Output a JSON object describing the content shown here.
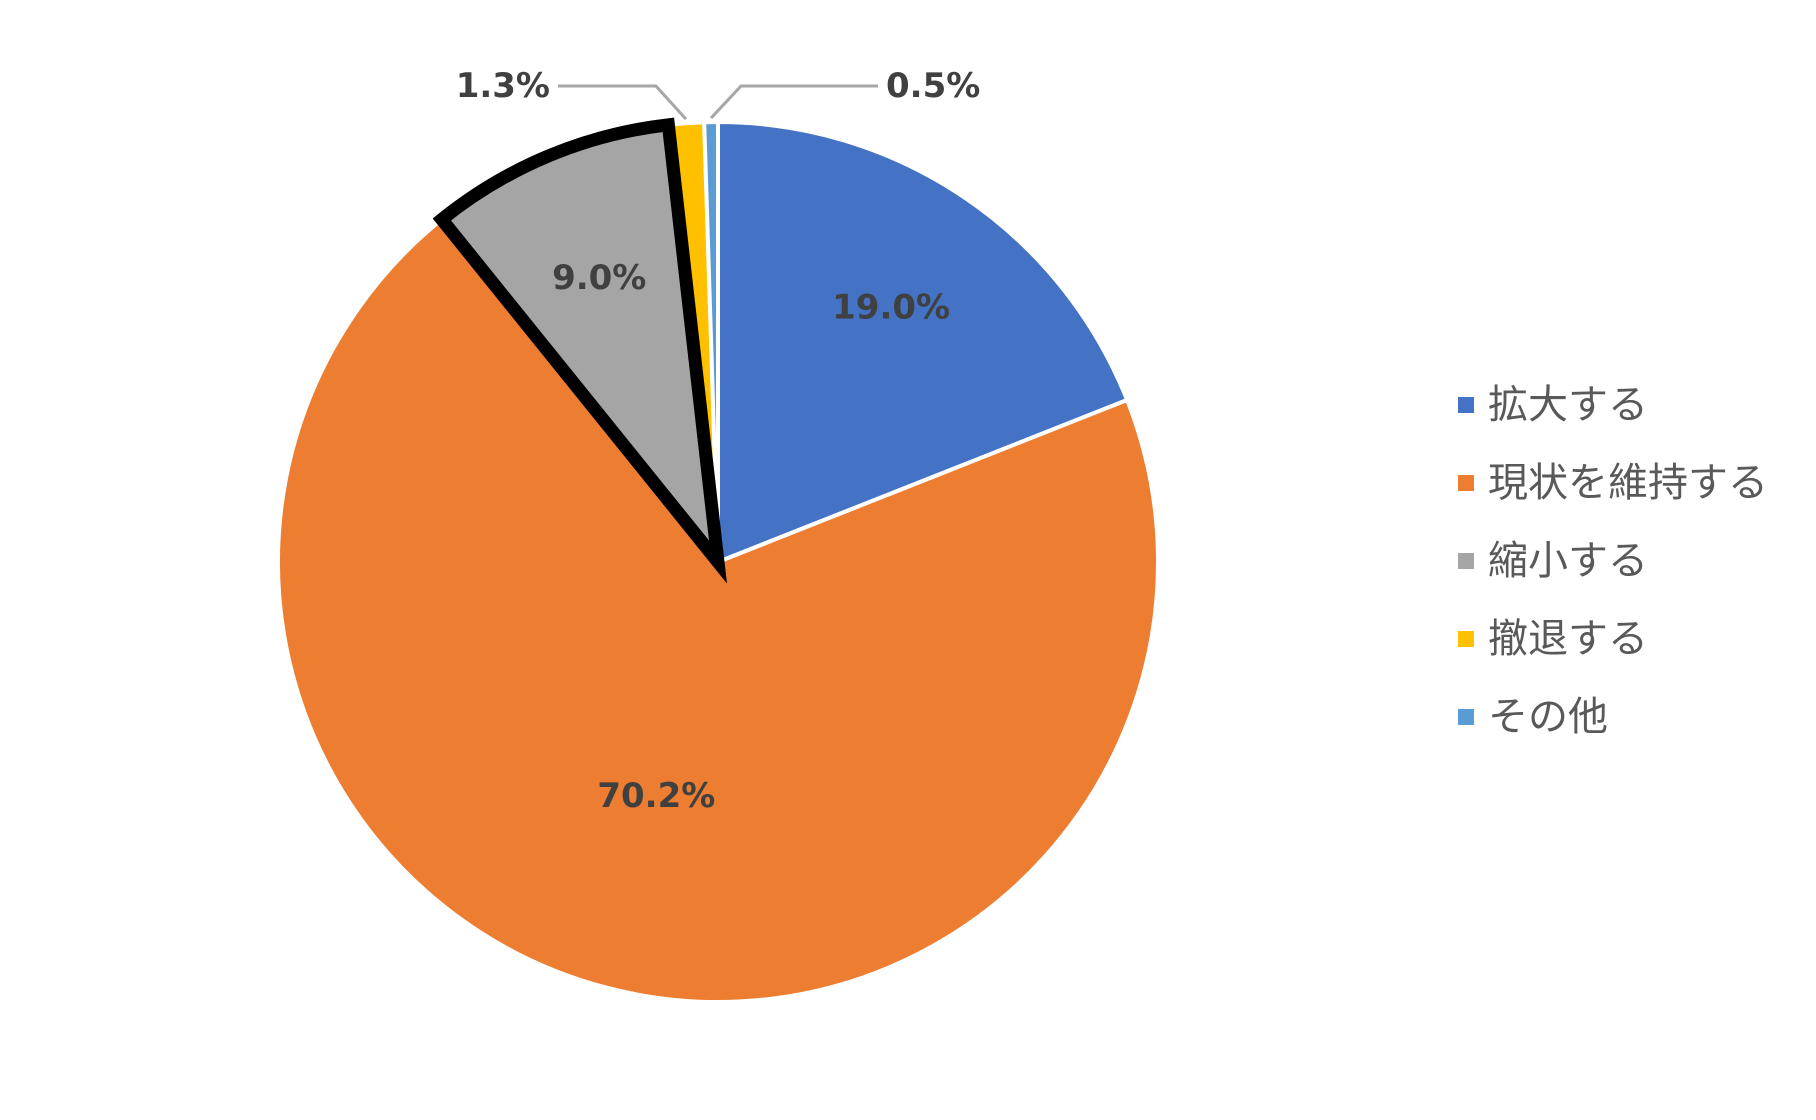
{
  "chart_data": {
    "type": "pie",
    "categories": [
      "拡大する",
      "現状を維持する",
      "縮小する",
      "撤退する",
      "その他"
    ],
    "values": [
      19.0,
      70.2,
      9.0,
      1.3,
      0.5
    ],
    "labels": [
      "19.0%",
      "70.2%",
      "9.0%",
      "1.3%",
      "0.5%"
    ],
    "colors": [
      "#4472C4",
      "#ED7D31",
      "#A5A5A5",
      "#FFC000",
      "#5B9BD5"
    ],
    "highlighted": "縮小する",
    "highlight_color": "#000000",
    "start_angle": "top",
    "direction": "clockwise",
    "legend": "right",
    "title": ""
  }
}
